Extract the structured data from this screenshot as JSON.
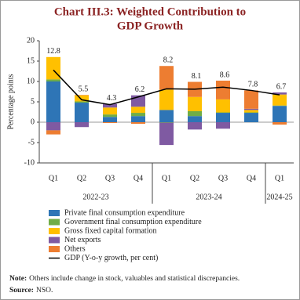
{
  "chart_data": {
    "type": "stacked_bar_line",
    "title": [
      "Chart III.3: Weighted Contribution to",
      "GDP Growth"
    ],
    "y_label": "Percentage points",
    "categories": [
      "Q1",
      "Q2",
      "Q3",
      "Q4",
      "Q1",
      "Q2",
      "Q3",
      "Q4",
      "Q1"
    ],
    "category_groups": [
      "2022-23",
      "2022-23",
      "2022-23",
      "2022-23",
      "2023-24",
      "2023-24",
      "2023-24",
      "2023-24",
      "2024-25"
    ],
    "ylim": [
      -10,
      20
    ],
    "yticks": [
      -10,
      -5,
      0,
      5,
      10,
      15,
      20
    ],
    "series": [
      {
        "name": "Private final consumption expenditure",
        "color": "#2e75b6",
        "values": [
          10,
          4.8,
          1.3,
          1.5,
          3,
          1.5,
          2.3,
          2.3,
          4
        ]
      },
      {
        "name": "Government final consumption expenditure",
        "color": "#70ad47",
        "values": [
          0.5,
          0.3,
          0.6,
          0.8,
          -0.1,
          1.2,
          0.1,
          0.1,
          0.1
        ]
      },
      {
        "name": "Gross fixed capital formation",
        "color": "#ffc000",
        "values": [
          5.5,
          1.5,
          1.7,
          1.5,
          5,
          3.5,
          3.2,
          0.6,
          2.7
        ]
      },
      {
        "name": "Net exports",
        "color": "#7f5aa2",
        "values": [
          -2,
          -1.2,
          0.9,
          2.8,
          -5.5,
          -1.8,
          -1.6,
          0.3,
          0.5
        ]
      },
      {
        "name": "Others",
        "color": "#ed7d31",
        "values": [
          -1,
          0.1,
          -0.2,
          -0.4,
          5.8,
          3.7,
          4.6,
          4.5,
          -0.6
        ]
      }
    ],
    "line": {
      "name": "GDP (Y-o-y growth, per cent)",
      "color": "#000000",
      "values": [
        12.8,
        5.5,
        4.3,
        6.2,
        8.2,
        8.1,
        8.6,
        7.8,
        6.7
      ]
    },
    "note": {
      "label": "Note:",
      "text": "Others include change in stock, valuables and statistical discrepancies."
    },
    "source": {
      "label": "Source:",
      "text": "NSO."
    }
  }
}
